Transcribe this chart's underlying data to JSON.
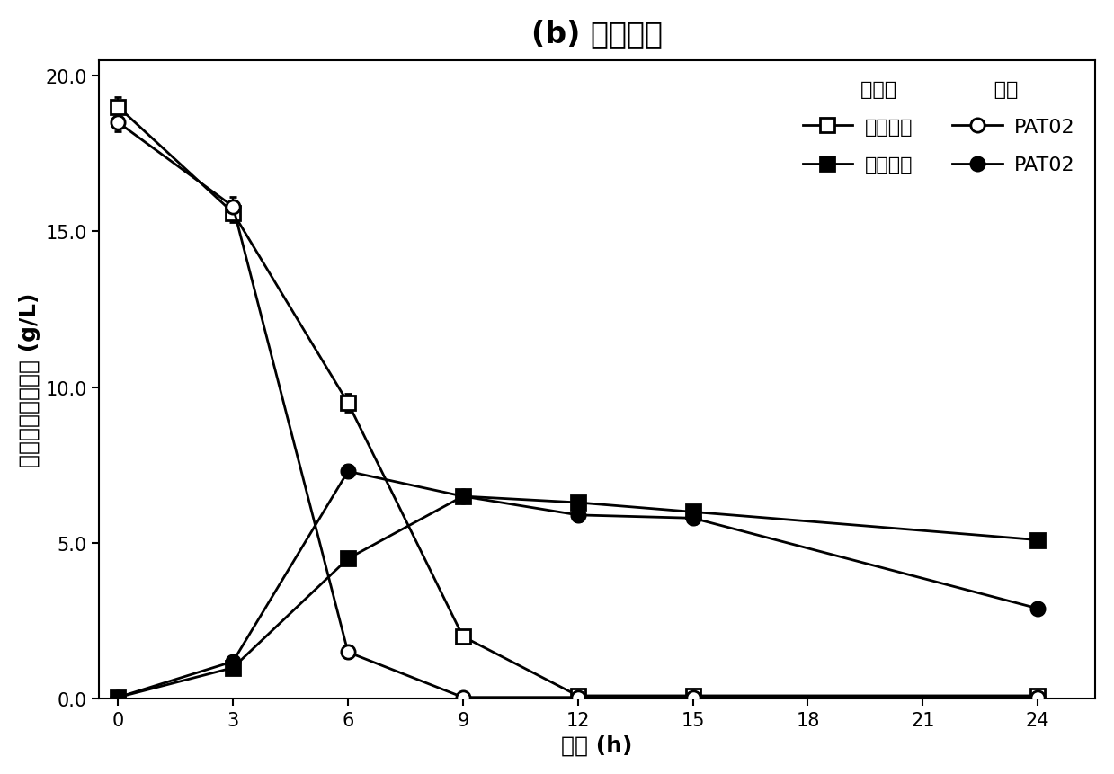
{
  "title": "(b) 发酵性能",
  "xlabel": "时间 (h)",
  "ylabel": "葡萄糖、乙醇浓度 (g/L)",
  "xlim": [
    -0.5,
    25.5
  ],
  "ylim": [
    0.0,
    20.5
  ],
  "xticks": [
    0,
    3,
    6,
    9,
    12,
    15,
    18,
    21,
    24
  ],
  "yticks": [
    0.0,
    5.0,
    10.0,
    15.0,
    20.0
  ],
  "series": {
    "glucose_original": {
      "x": [
        0,
        3,
        6,
        9,
        12,
        15,
        24
      ],
      "y": [
        19.0,
        15.6,
        9.5,
        2.0,
        0.1,
        0.1,
        0.1
      ],
      "yerr": [
        0.3,
        0.3,
        0.3,
        0.2,
        0.05,
        0.05,
        0.05
      ],
      "label": "原始菌株",
      "marker": "s",
      "markersize": 11,
      "linewidth": 2.0,
      "filled": false
    },
    "glucose_PAT02": {
      "x": [
        0,
        3,
        6,
        9,
        12,
        15,
        24
      ],
      "y": [
        18.5,
        15.8,
        1.5,
        0.05,
        0.05,
        0.05,
        0.05
      ],
      "yerr": [
        0.3,
        0.3,
        0.2,
        0.05,
        0.05,
        0.05,
        0.05
      ],
      "label": "PAT02",
      "marker": "o",
      "markersize": 11,
      "linewidth": 2.0,
      "filled": false
    },
    "ethanol_original": {
      "x": [
        0,
        3,
        6,
        9,
        12,
        15,
        24
      ],
      "y": [
        0.05,
        1.0,
        4.5,
        6.5,
        6.3,
        6.0,
        5.1
      ],
      "yerr": [
        0.05,
        0.1,
        0.2,
        0.2,
        0.2,
        0.2,
        0.15
      ],
      "label": "原始菌株",
      "marker": "s",
      "markersize": 11,
      "linewidth": 2.0,
      "filled": true
    },
    "ethanol_PAT02": {
      "x": [
        0,
        3,
        6,
        9,
        12,
        15,
        24
      ],
      "y": [
        0.05,
        1.2,
        7.3,
        6.5,
        5.9,
        5.8,
        2.9
      ],
      "yerr": [
        0.05,
        0.1,
        0.2,
        0.2,
        0.2,
        0.2,
        0.15
      ],
      "label": "PAT02",
      "marker": "o",
      "markersize": 11,
      "linewidth": 2.0,
      "filled": true
    }
  },
  "legend_glucose_label": "葡萄糖",
  "legend_ethanol_label": "乙醇",
  "background_color": "#ffffff"
}
